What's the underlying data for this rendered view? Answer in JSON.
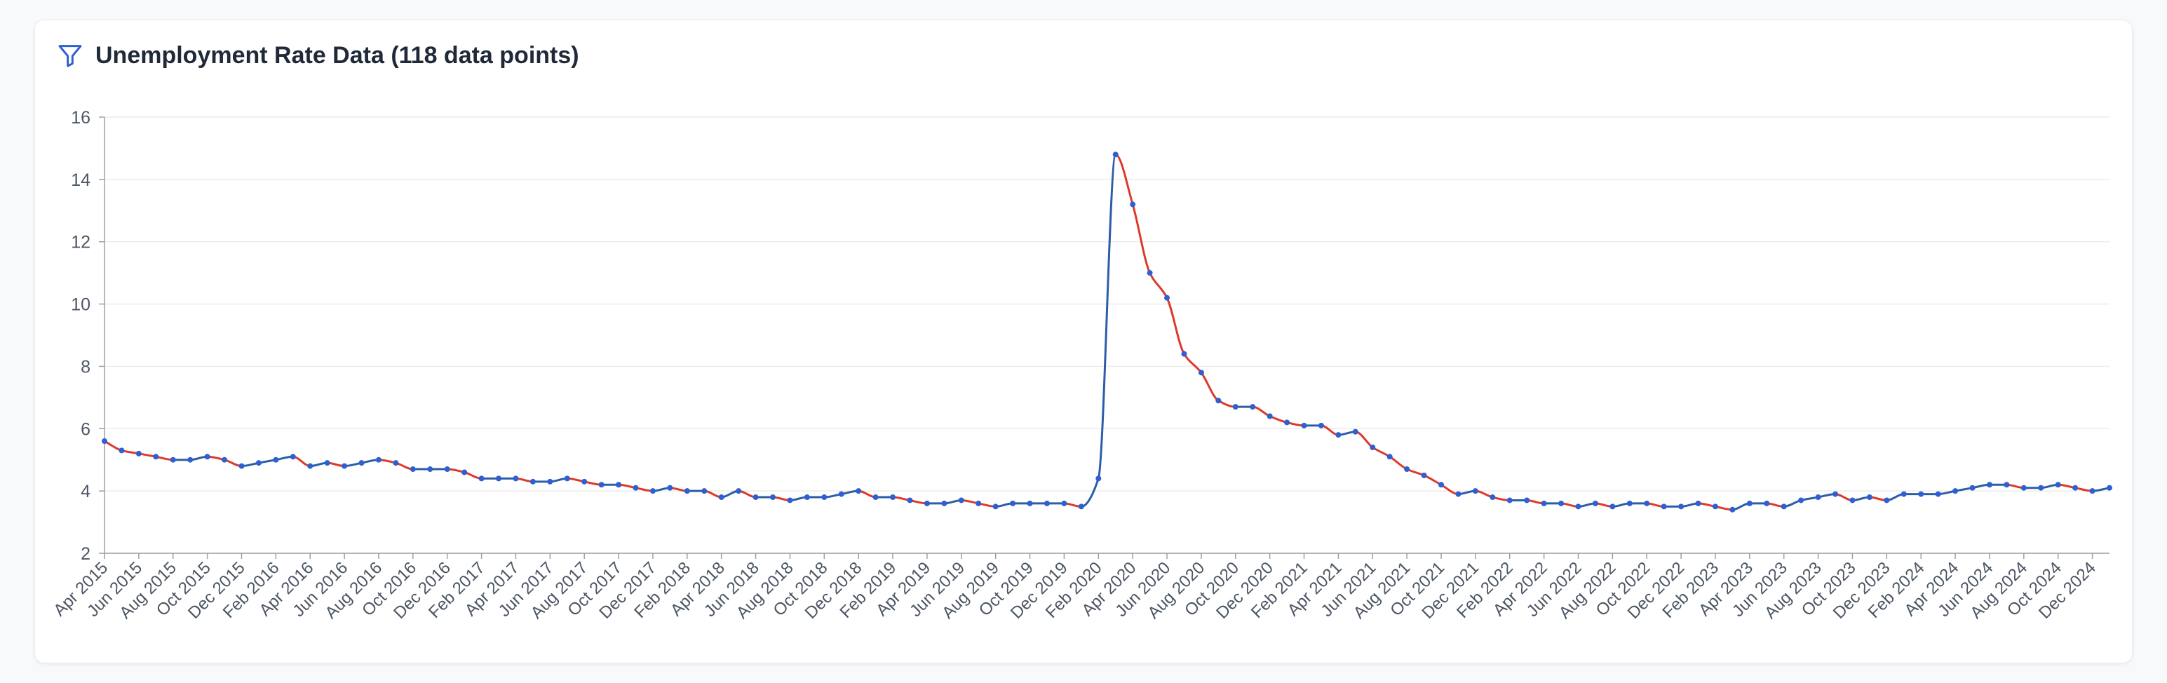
{
  "card": {
    "title": "Unemployment Rate Data (118 data points)"
  },
  "icons": {
    "filter": "filter-icon"
  },
  "colors": {
    "line": "#2b5ea7",
    "marker": "#2f5fd0",
    "decline": "#dc3a2c",
    "grid": "#ececec",
    "axis": "#9aa0a6"
  },
  "chart_data": {
    "type": "line",
    "title": "",
    "xlabel": "",
    "ylabel": "",
    "ylim": [
      2,
      16
    ],
    "yticks": [
      2,
      4,
      6,
      8,
      10,
      12,
      14,
      16
    ],
    "grid": true,
    "segment_coloring": "decreasing segments red, increasing or flat segments blue",
    "x": [
      "Apr 2015",
      "May 2015",
      "Jun 2015",
      "Jul 2015",
      "Aug 2015",
      "Sep 2015",
      "Oct 2015",
      "Nov 2015",
      "Dec 2015",
      "Jan 2016",
      "Feb 2016",
      "Mar 2016",
      "Apr 2016",
      "May 2016",
      "Jun 2016",
      "Jul 2016",
      "Aug 2016",
      "Sep 2016",
      "Oct 2016",
      "Nov 2016",
      "Dec 2016",
      "Jan 2017",
      "Feb 2017",
      "Mar 2017",
      "Apr 2017",
      "May 2017",
      "Jun 2017",
      "Jul 2017",
      "Aug 2017",
      "Sep 2017",
      "Oct 2017",
      "Nov 2017",
      "Dec 2017",
      "Jan 2018",
      "Feb 2018",
      "Mar 2018",
      "Apr 2018",
      "May 2018",
      "Jun 2018",
      "Jul 2018",
      "Aug 2018",
      "Sep 2018",
      "Oct 2018",
      "Nov 2018",
      "Dec 2018",
      "Jan 2019",
      "Feb 2019",
      "Mar 2019",
      "Apr 2019",
      "May 2019",
      "Jun 2019",
      "Jul 2019",
      "Aug 2019",
      "Sep 2019",
      "Oct 2019",
      "Nov 2019",
      "Dec 2019",
      "Jan 2020",
      "Feb 2020",
      "Mar 2020",
      "Apr 2020",
      "May 2020",
      "Jun 2020",
      "Jul 2020",
      "Aug 2020",
      "Sep 2020",
      "Oct 2020",
      "Nov 2020",
      "Dec 2020",
      "Jan 2021",
      "Feb 2021",
      "Mar 2021",
      "Apr 2021",
      "May 2021",
      "Jun 2021",
      "Jul 2021",
      "Aug 2021",
      "Sep 2021",
      "Oct 2021",
      "Nov 2021",
      "Dec 2021",
      "Jan 2022",
      "Feb 2022",
      "Mar 2022",
      "Apr 2022",
      "May 2022",
      "Jun 2022",
      "Jul 2022",
      "Aug 2022",
      "Sep 2022",
      "Oct 2022",
      "Nov 2022",
      "Dec 2022",
      "Jan 2023",
      "Feb 2023",
      "Mar 2023",
      "Apr 2023",
      "May 2023",
      "Jun 2023",
      "Jul 2023",
      "Aug 2023",
      "Sep 2023",
      "Oct 2023",
      "Nov 2023",
      "Dec 2023",
      "Jan 2024",
      "Feb 2024",
      "Mar 2024",
      "Apr 2024",
      "May 2024",
      "Jun 2024",
      "Jul 2024",
      "Aug 2024",
      "Sep 2024",
      "Oct 2024",
      "Nov 2024",
      "Dec 2024",
      "Jan 2025"
    ],
    "series": [
      {
        "values": [
          5.6,
          5.3,
          5.2,
          5.1,
          5.0,
          5.0,
          5.1,
          5.0,
          4.8,
          4.9,
          5.0,
          5.1,
          4.8,
          4.9,
          4.8,
          4.9,
          5.0,
          4.9,
          4.7,
          4.7,
          4.7,
          4.6,
          4.4,
          4.4,
          4.4,
          4.3,
          4.3,
          4.4,
          4.3,
          4.2,
          4.2,
          4.1,
          4.0,
          4.1,
          4.0,
          4.0,
          3.8,
          4.0,
          3.8,
          3.8,
          3.7,
          3.8,
          3.8,
          3.9,
          4.0,
          3.8,
          3.8,
          3.7,
          3.6,
          3.6,
          3.7,
          3.6,
          3.5,
          3.6,
          3.6,
          3.6,
          3.6,
          3.5,
          4.4,
          14.8,
          13.2,
          11.0,
          10.2,
          8.4,
          7.8,
          6.9,
          6.7,
          6.7,
          6.4,
          6.2,
          6.1,
          6.1,
          5.8,
          5.9,
          5.4,
          5.1,
          4.7,
          4.5,
          4.2,
          3.9,
          4.0,
          3.8,
          3.7,
          3.7,
          3.6,
          3.6,
          3.5,
          3.6,
          3.5,
          3.6,
          3.6,
          3.5,
          3.5,
          3.6,
          3.5,
          3.4,
          3.6,
          3.6,
          3.5,
          3.7,
          3.8,
          3.9,
          3.7,
          3.8,
          3.7,
          3.9,
          3.9,
          3.9,
          4.0,
          4.1,
          4.2,
          4.2,
          4.1,
          4.1,
          4.2,
          4.1,
          4.0,
          4.1
        ]
      }
    ]
  }
}
